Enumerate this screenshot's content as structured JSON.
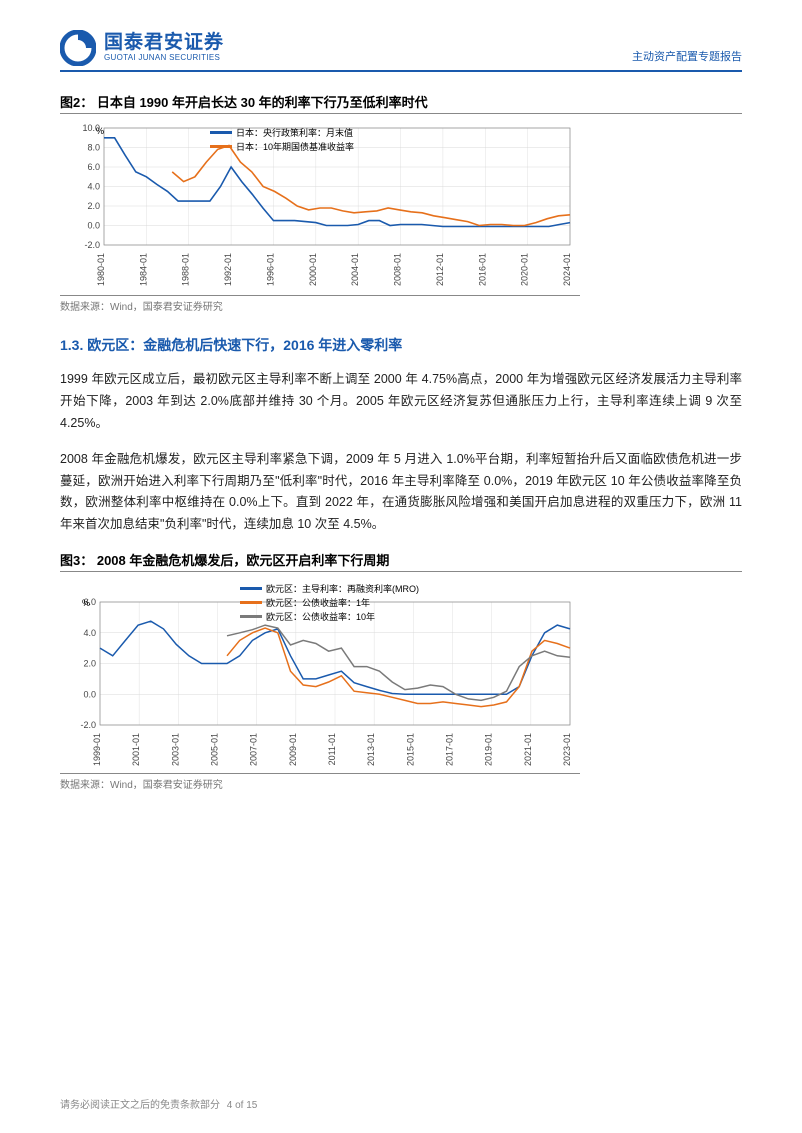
{
  "header": {
    "logo_cn": "国泰君安证券",
    "logo_en": "GUOTAI JUNAN SECURITIES",
    "logo_color": "#1a5aad",
    "report_type": "主动资产配置专题报告"
  },
  "figure2": {
    "title": "图2： 日本自 1990 年开启长达 30 年的利率下行乃至低利率时代",
    "source": "数据来源：Wind，国泰君安证券研究",
    "type": "line",
    "background_color": "#ffffff",
    "grid_color": "#d9d9d9",
    "font_size": 9,
    "y_unit": "%",
    "ylim": [
      -2,
      10
    ],
    "ytick_step": 2,
    "x_labels": [
      "1980-01",
      "1984-01",
      "1988-01",
      "1992-01",
      "1996-01",
      "2000-01",
      "2004-01",
      "2008-01",
      "2012-01",
      "2016-01",
      "2020-01",
      "2024-01"
    ],
    "line_width": 1.6,
    "series": [
      {
        "name": "日本：央行政策利率：月末值",
        "color": "#1a5aad",
        "values": [
          9.0,
          9.0,
          7.2,
          5.5,
          5.0,
          4.2,
          3.5,
          2.5,
          2.5,
          2.5,
          2.5,
          4.0,
          6.0,
          4.5,
          3.2,
          1.8,
          0.5,
          0.5,
          0.5,
          0.4,
          0.3,
          0.0,
          0.0,
          0.0,
          0.1,
          0.5,
          0.5,
          0.0,
          0.1,
          0.1,
          0.1,
          0.0,
          -0.1,
          -0.1,
          -0.1,
          -0.1,
          -0.1,
          -0.1,
          -0.1,
          -0.1,
          -0.1,
          -0.1,
          -0.1,
          0.1,
          0.3
        ]
      },
      {
        "name": "日本：10年期国债基准收益率",
        "color": "#e6701b",
        "values": [
          null,
          null,
          null,
          null,
          null,
          null,
          5.5,
          4.5,
          5.0,
          6.5,
          7.8,
          8.2,
          6.5,
          5.5,
          4.0,
          3.5,
          2.8,
          2.0,
          1.6,
          1.8,
          1.8,
          1.5,
          1.3,
          1.4,
          1.5,
          1.8,
          1.6,
          1.4,
          1.3,
          1.0,
          0.8,
          0.6,
          0.4,
          0.0,
          0.1,
          0.1,
          0.0,
          0.0,
          0.3,
          0.7,
          1.0,
          1.1
        ]
      }
    ]
  },
  "section_1_3": {
    "heading": "1.3. 欧元区：金融危机后快速下行，2016 年进入零利率",
    "para1": "1999 年欧元区成立后，最初欧元区主导利率不断上调至 2000 年 4.75%高点，2000 年为增强欧元区经济发展活力主导利率开始下降，2003 年到达 2.0%底部并维持 30 个月。2005 年欧元区经济复苏但通胀压力上行，主导利率连续上调 9 次至 4.25%。",
    "para2": "2008 年金融危机爆发，欧元区主导利率紧急下调，2009 年 5 月进入 1.0%平台期，利率短暂抬升后又面临欧债危机进一步蔓延，欧洲开始进入利率下行周期乃至\"低利率\"时代，2016 年主导利率降至 0.0%，2019 年欧元区 10 年公债收益率降至负数，欧洲整体利率中枢维持在 0.0%上下。直到 2022 年，在通货膨胀风险增强和美国开启加息进程的双重压力下，欧洲 11 年来首次加息结束\"负利率\"时代，连续加息 10 次至 4.5%。"
  },
  "figure3": {
    "title": "图3： 2008 年金融危机爆发后，欧元区开启利率下行周期",
    "source": "数据来源：Wind，国泰君安证券研究",
    "type": "line",
    "background_color": "#ffffff",
    "grid_color": "#d9d9d9",
    "font_size": 9,
    "y_unit": "%",
    "ylim": [
      -2,
      6
    ],
    "ytick_step": 2,
    "x_labels": [
      "1999-01",
      "2001-01",
      "2003-01",
      "2005-01",
      "2007-01",
      "2009-01",
      "2011-01",
      "2013-01",
      "2015-01",
      "2017-01",
      "2019-01",
      "2021-01",
      "2023-01"
    ],
    "line_width": 1.5,
    "series": [
      {
        "name": "欧元区：主导利率：再融资利率(MRO)",
        "color": "#1a5aad",
        "values": [
          3.0,
          2.5,
          3.5,
          4.5,
          4.75,
          4.25,
          3.25,
          2.5,
          2.0,
          2.0,
          2.0,
          2.5,
          3.5,
          4.0,
          4.25,
          2.5,
          1.0,
          1.0,
          1.25,
          1.5,
          0.75,
          0.5,
          0.25,
          0.05,
          0.0,
          0.0,
          0.0,
          0.0,
          0.0,
          0.0,
          0.0,
          0.0,
          0.0,
          0.5,
          2.5,
          4.0,
          4.5,
          4.25
        ]
      },
      {
        "name": "欧元区：公债收益率：1年",
        "color": "#e6701b",
        "values": [
          null,
          null,
          null,
          null,
          null,
          null,
          null,
          null,
          null,
          null,
          2.5,
          3.5,
          4.0,
          4.3,
          4.0,
          1.5,
          0.6,
          0.5,
          0.8,
          1.2,
          0.2,
          0.1,
          0.0,
          -0.2,
          -0.4,
          -0.6,
          -0.6,
          -0.5,
          -0.6,
          -0.7,
          -0.8,
          -0.7,
          -0.5,
          0.5,
          2.8,
          3.5,
          3.3,
          3.0
        ]
      },
      {
        "name": "欧元区：公债收益率：10年",
        "color": "#7a7a7a",
        "values": [
          null,
          null,
          null,
          null,
          null,
          null,
          null,
          null,
          null,
          null,
          3.8,
          4.0,
          4.2,
          4.5,
          4.3,
          3.2,
          3.5,
          3.3,
          2.8,
          3.0,
          1.8,
          1.8,
          1.5,
          0.8,
          0.3,
          0.4,
          0.6,
          0.5,
          0.0,
          -0.3,
          -0.4,
          -0.2,
          0.2,
          1.8,
          2.5,
          2.8,
          2.5,
          2.4
        ]
      }
    ]
  },
  "footer": {
    "text": "请务必阅读正文之后的免责条款部分",
    "page": "4 of 15"
  }
}
